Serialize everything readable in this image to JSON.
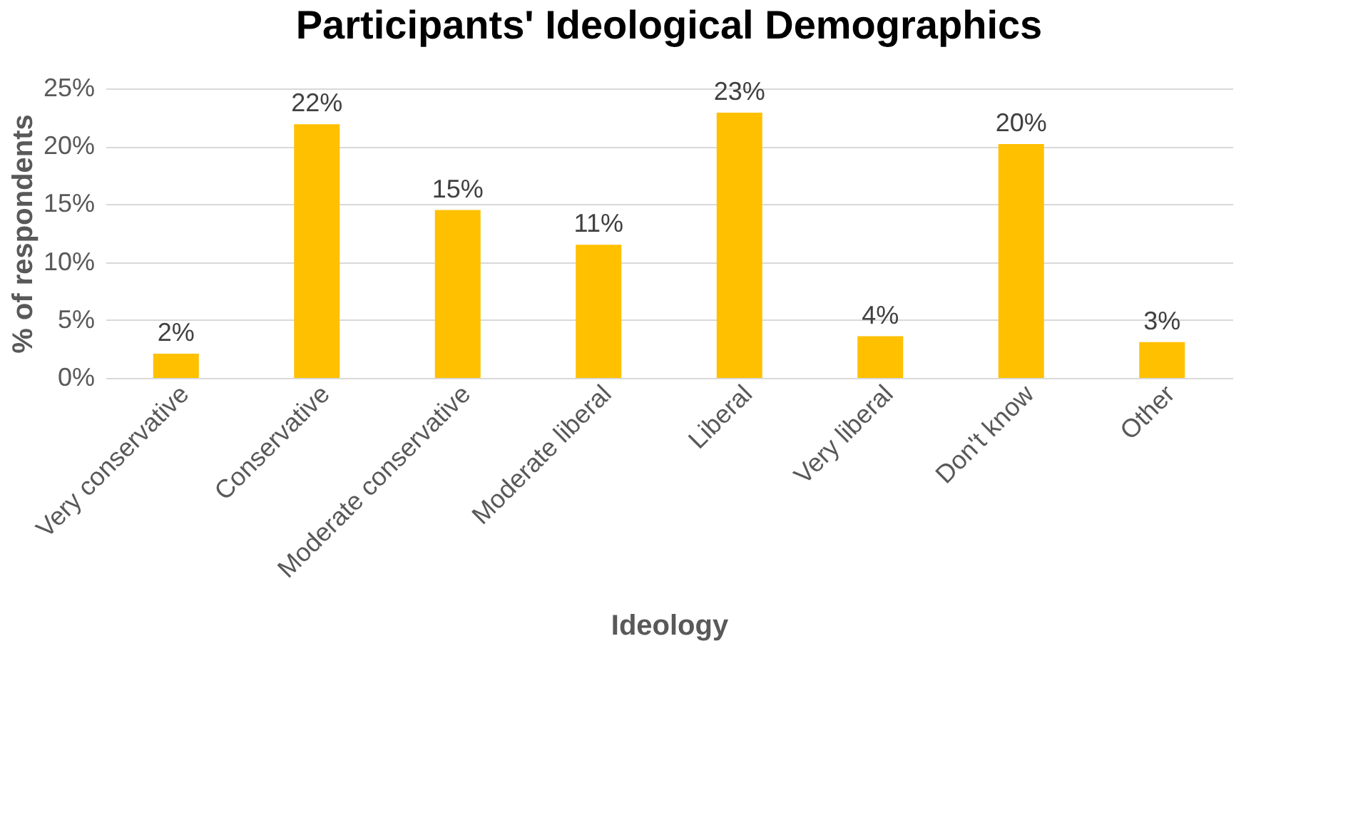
{
  "chart_data": {
    "type": "bar",
    "title": "Participants' Ideological Demographics",
    "xlabel": "Ideology",
    "ylabel": "% of respondents",
    "categories": [
      "Very conservative",
      "Conservative",
      "Moderate conservative",
      "Moderate liberal",
      "Liberal",
      "Very liberal",
      "Don't know",
      "Other"
    ],
    "values": [
      2.1,
      21.9,
      14.5,
      11.5,
      22.9,
      3.6,
      20.2,
      3.1
    ],
    "value_labels": [
      "2%",
      "22%",
      "15%",
      "11%",
      "23%",
      "4%",
      "20%",
      "3%"
    ],
    "color": "#ffc000",
    "ylim": [
      0,
      25
    ],
    "yticks": [
      {
        "value": 0,
        "label": "0%"
      },
      {
        "value": 5,
        "label": "5%"
      },
      {
        "value": 10,
        "label": "10%"
      },
      {
        "value": 15,
        "label": "15%"
      },
      {
        "value": 20,
        "label": "20%"
      },
      {
        "value": 25,
        "label": "25%"
      }
    ],
    "grid": "y"
  }
}
